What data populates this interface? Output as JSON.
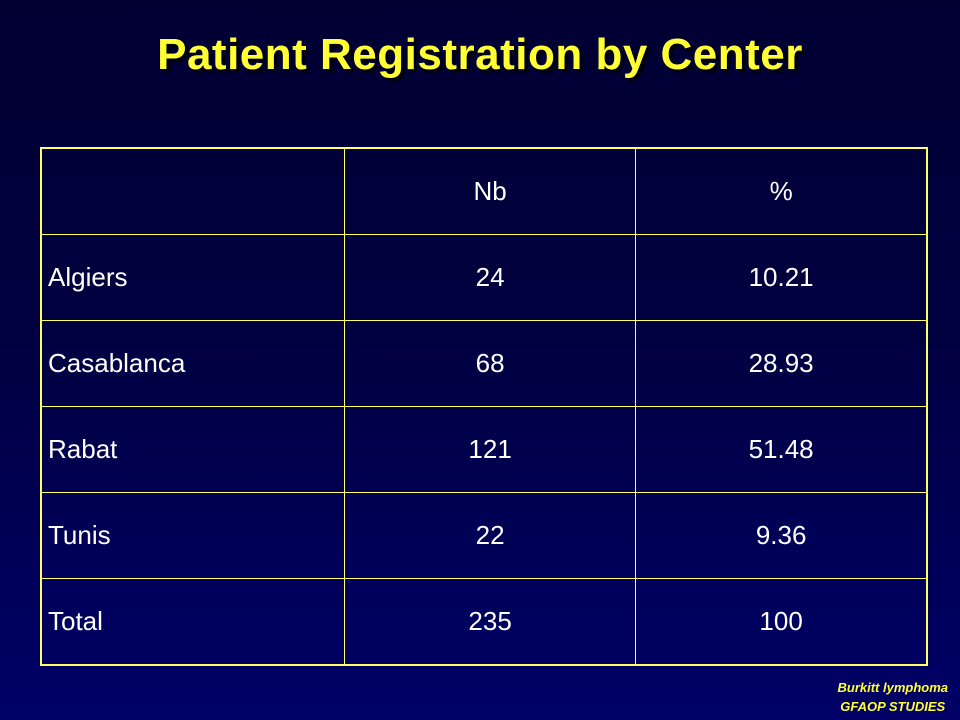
{
  "slide": {
    "title": "Patient Registration by Center"
  },
  "table": {
    "header": [
      "",
      "Nb",
      "%"
    ],
    "rows": [
      [
        "Algiers",
        "24",
        "10.21"
      ],
      [
        "Casablanca",
        "68",
        "28.93"
      ],
      [
        "Rabat",
        "121",
        "51.48"
      ],
      [
        "Tunis",
        "22",
        "9.36"
      ],
      [
        "Total",
        "235",
        "100"
      ]
    ]
  },
  "footer": {
    "line1": "Burkitt lymphoma",
    "line2": "GFAOP STUDIES"
  },
  "colors": {
    "background": "#000044",
    "title": "#ffff33",
    "table_border": "#ffff66",
    "table_text": "#ffffff"
  }
}
